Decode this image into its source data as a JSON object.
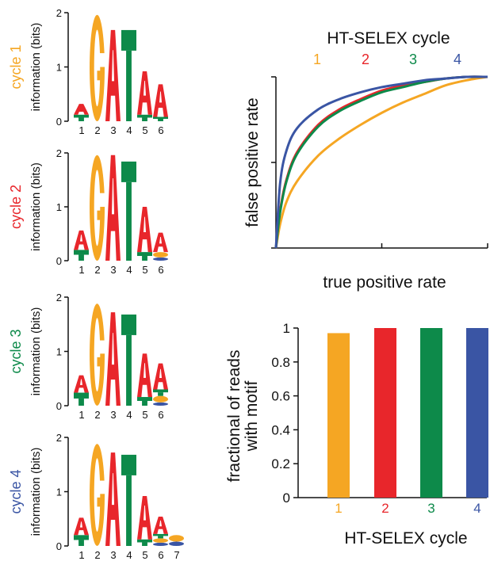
{
  "colors": {
    "A": "#e8262b",
    "G": "#f5a623",
    "T": "#0d8a4a",
    "C": "#3a55a4"
  },
  "logos": {
    "ylabel": "information (bits)",
    "y_ticks": [
      "0",
      "1",
      "2"
    ],
    "panels": [
      {
        "cycle_label": "cycle 1",
        "color": "#f5a623",
        "positions": [
          "1",
          "2",
          "3",
          "4",
          "5",
          "6"
        ]
      },
      {
        "cycle_label": "cycle 2",
        "color": "#e8262b",
        "positions": [
          "1",
          "2",
          "3",
          "4",
          "5",
          "6"
        ]
      },
      {
        "cycle_label": "cycle 3",
        "color": "#0d8a4a",
        "positions": [
          "1",
          "2",
          "3",
          "4",
          "5",
          "6"
        ]
      },
      {
        "cycle_label": "cycle 4",
        "color": "#3a55a4",
        "positions": [
          "1",
          "2",
          "3",
          "4",
          "5",
          "6",
          "7"
        ]
      }
    ]
  },
  "chart_data": [
    {
      "type": "line",
      "title": "HT-SELEX cycle",
      "xlabel": "true positive rate",
      "ylabel": "false positive rate",
      "xlim": [
        0,
        1
      ],
      "ylim": [
        0,
        1
      ],
      "series": [
        {
          "name": "1",
          "color": "#f5a623",
          "x": [
            0,
            0.02,
            0.05,
            0.1,
            0.2,
            0.3,
            0.4,
            0.5,
            0.6,
            0.7,
            0.8,
            0.9,
            1.0
          ],
          "y": [
            0,
            0.14,
            0.27,
            0.39,
            0.54,
            0.64,
            0.72,
            0.79,
            0.85,
            0.9,
            0.95,
            0.98,
            1.0
          ]
        },
        {
          "name": "2",
          "color": "#e8262b",
          "x": [
            0,
            0.02,
            0.05,
            0.1,
            0.2,
            0.3,
            0.4,
            0.5,
            0.6,
            0.7,
            0.8,
            0.9,
            1.0
          ],
          "y": [
            0,
            0.22,
            0.4,
            0.56,
            0.72,
            0.81,
            0.87,
            0.92,
            0.95,
            0.97,
            0.99,
            1.0,
            1.0
          ]
        },
        {
          "name": "3",
          "color": "#0d8a4a",
          "x": [
            0,
            0.02,
            0.05,
            0.1,
            0.2,
            0.3,
            0.4,
            0.5,
            0.6,
            0.7,
            0.8,
            0.9,
            1.0
          ],
          "y": [
            0,
            0.21,
            0.39,
            0.55,
            0.71,
            0.8,
            0.86,
            0.91,
            0.94,
            0.97,
            0.99,
            1.0,
            1.0
          ]
        },
        {
          "name": "4",
          "color": "#3a55a4",
          "x": [
            0,
            0.02,
            0.05,
            0.1,
            0.2,
            0.3,
            0.4,
            0.5,
            0.6,
            0.7,
            0.8,
            0.9,
            1.0
          ],
          "y": [
            0,
            0.38,
            0.57,
            0.7,
            0.81,
            0.87,
            0.91,
            0.94,
            0.96,
            0.98,
            0.99,
            1.0,
            1.0
          ]
        }
      ]
    },
    {
      "type": "bar",
      "xlabel": "HT-SELEX cycle",
      "ylabel_lines": [
        "fractional of reads",
        "with motif"
      ],
      "categories": [
        "1",
        "2",
        "3",
        "4"
      ],
      "values": [
        0.97,
        1.0,
        1.0,
        1.0
      ],
      "colors": [
        "#f5a623",
        "#e8262b",
        "#0d8a4a",
        "#3a55a4"
      ],
      "ylim": [
        0,
        1
      ],
      "y_ticks": [
        "0",
        "0.2",
        "0.4",
        "0.6",
        "0.8",
        "1"
      ]
    }
  ]
}
